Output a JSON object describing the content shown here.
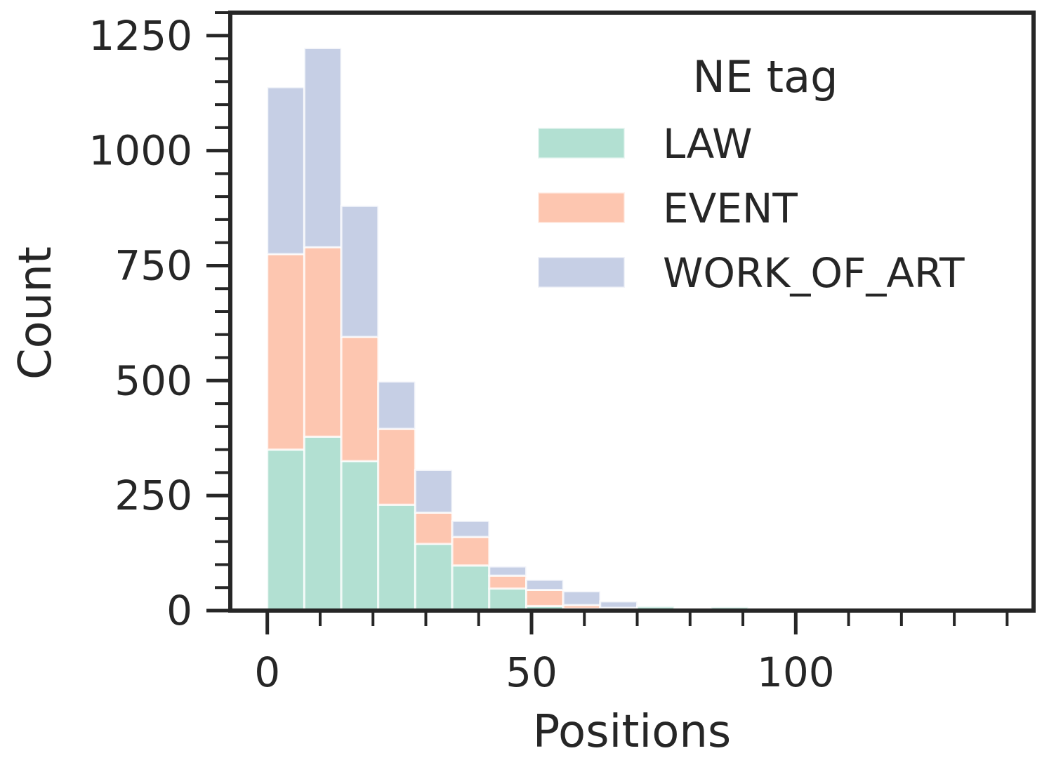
{
  "chart_data": {
    "type": "bar",
    "subtype": "histogram-stacked",
    "title": "",
    "xlabel": "Positions",
    "ylabel": "Count",
    "xlim": [
      -7,
      145
    ],
    "ylim": [
      0,
      1300
    ],
    "x_ticks_major": [
      0,
      50,
      100
    ],
    "x_tick_labels": [
      "0",
      "50",
      "100"
    ],
    "x_ticks_minor": [
      10,
      20,
      30,
      40,
      60,
      70,
      80,
      90,
      110,
      120,
      130,
      140
    ],
    "y_ticks_major": [
      0,
      250,
      500,
      750,
      1000,
      1250
    ],
    "y_tick_labels": [
      "0",
      "250",
      "500",
      "750",
      "1000",
      "1250"
    ],
    "y_ticks_minor_step": 50,
    "grid": false,
    "bin_edges": [
      0,
      7,
      14,
      21,
      28,
      35,
      42,
      49,
      56,
      63,
      70,
      77,
      84,
      91
    ],
    "legend": {
      "title": "NE tag",
      "placement": "top-right"
    },
    "series": [
      {
        "name": "LAW",
        "color": "#66c2a5",
        "values": [
          350,
          378,
          325,
          230,
          145,
          98,
          48,
          10,
          4,
          2,
          9,
          2,
          8
        ]
      },
      {
        "name": "EVENT",
        "color": "#fc8d62",
        "values": [
          425,
          412,
          270,
          165,
          68,
          62,
          28,
          35,
          8,
          4,
          0,
          0,
          0
        ]
      },
      {
        "name": "WORK_OF_ART",
        "color": "#8da0cb",
        "values": [
          363,
          433,
          285,
          103,
          93,
          35,
          20,
          22,
          30,
          14,
          0,
          0,
          0
        ]
      }
    ]
  }
}
